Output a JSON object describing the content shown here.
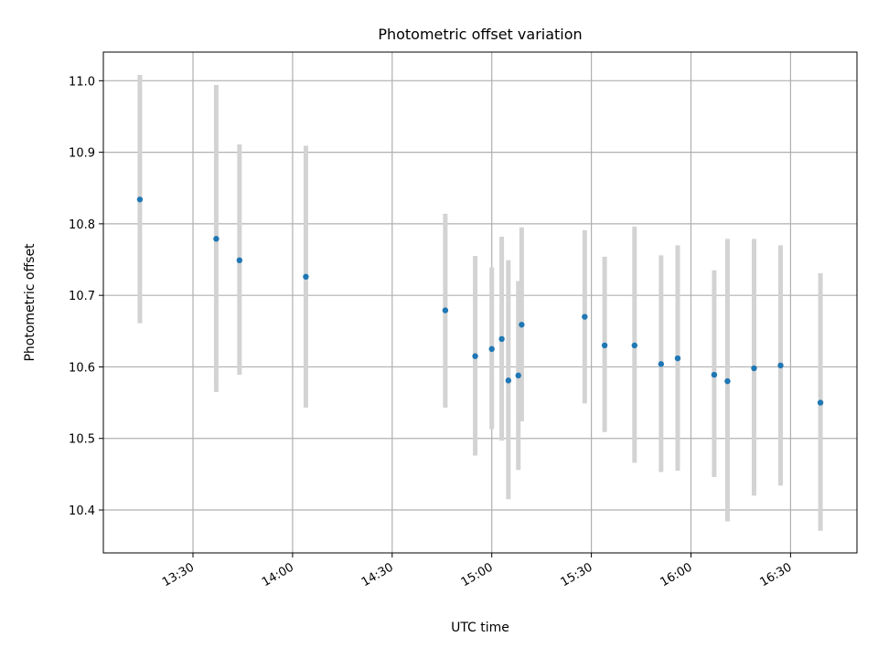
{
  "chart_data": {
    "type": "scatter",
    "title": "Photometric offset variation",
    "xlabel": "UTC time",
    "ylabel": "Photometric offset",
    "x_ticks": [
      "13:30",
      "14:00",
      "14:30",
      "15:00",
      "15:30",
      "16:00",
      "16:30"
    ],
    "y_ticks": [
      "10.4",
      "10.5",
      "10.6",
      "10.7",
      "10.8",
      "10.9",
      "11.0"
    ],
    "xlim": [
      "13:03",
      "16:50"
    ],
    "ylim": [
      10.34,
      11.04
    ],
    "grid": true,
    "legend": "none",
    "marker_color": "#1f77b4",
    "errorbar_color": "#d3d3d3",
    "series": [
      {
        "points": [
          {
            "x": "13:14",
            "y": 10.834,
            "ylow": 10.661,
            "yhigh": 11.008
          },
          {
            "x": "13:37",
            "y": 10.779,
            "ylow": 10.565,
            "yhigh": 10.994
          },
          {
            "x": "13:44",
            "y": 10.749,
            "ylow": 10.589,
            "yhigh": 10.911
          },
          {
            "x": "14:04",
            "y": 10.726,
            "ylow": 10.543,
            "yhigh": 10.909
          },
          {
            "x": "14:46",
            "y": 10.679,
            "ylow": 10.543,
            "yhigh": 10.814
          },
          {
            "x": "14:55",
            "y": 10.615,
            "ylow": 10.476,
            "yhigh": 10.755
          },
          {
            "x": "15:00",
            "y": 10.625,
            "ylow": 10.513,
            "yhigh": 10.739
          },
          {
            "x": "15:03",
            "y": 10.639,
            "ylow": 10.497,
            "yhigh": 10.782
          },
          {
            "x": "15:05",
            "y": 10.581,
            "ylow": 10.415,
            "yhigh": 10.749
          },
          {
            "x": "15:08",
            "y": 10.588,
            "ylow": 10.456,
            "yhigh": 10.72
          },
          {
            "x": "15:09",
            "y": 10.659,
            "ylow": 10.524,
            "yhigh": 10.795
          },
          {
            "x": "15:28",
            "y": 10.67,
            "ylow": 10.549,
            "yhigh": 10.791
          },
          {
            "x": "15:34",
            "y": 10.63,
            "ylow": 10.509,
            "yhigh": 10.754
          },
          {
            "x": "15:43",
            "y": 10.63,
            "ylow": 10.466,
            "yhigh": 10.796
          },
          {
            "x": "15:51",
            "y": 10.604,
            "ylow": 10.453,
            "yhigh": 10.756
          },
          {
            "x": "15:56",
            "y": 10.612,
            "ylow": 10.455,
            "yhigh": 10.77
          },
          {
            "x": "16:07",
            "y": 10.589,
            "ylow": 10.446,
            "yhigh": 10.735
          },
          {
            "x": "16:11",
            "y": 10.58,
            "ylow": 10.384,
            "yhigh": 10.779
          },
          {
            "x": "16:19",
            "y": 10.598,
            "ylow": 10.42,
            "yhigh": 10.779
          },
          {
            "x": "16:27",
            "y": 10.602,
            "ylow": 10.434,
            "yhigh": 10.77
          },
          {
            "x": "16:39",
            "y": 10.55,
            "ylow": 10.371,
            "yhigh": 10.731
          }
        ]
      }
    ]
  }
}
